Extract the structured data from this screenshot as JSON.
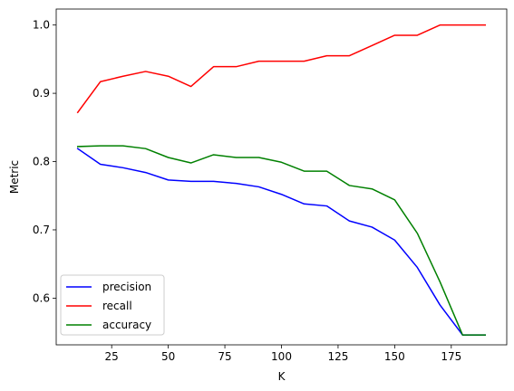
{
  "chart_data": {
    "type": "line",
    "title": "",
    "xlabel": "K",
    "ylabel": "Metric",
    "xlim": [
      0.5,
      199.5
    ],
    "ylim": [
      0.5316,
      1.0234
    ],
    "grid": false,
    "legend_placement": "lower-left",
    "x": [
      10,
      20,
      30,
      40,
      50,
      60,
      70,
      80,
      90,
      100,
      110,
      120,
      130,
      140,
      150,
      160,
      170,
      180,
      190
    ],
    "series": [
      {
        "name": "precision",
        "color": "#0000ff",
        "values": [
          0.819,
          0.796,
          0.791,
          0.784,
          0.773,
          0.771,
          0.771,
          0.768,
          0.763,
          0.752,
          0.738,
          0.735,
          0.713,
          0.704,
          0.685,
          0.645,
          0.59,
          0.546,
          0.546
        ]
      },
      {
        "name": "recall",
        "color": "#ff0000",
        "values": [
          0.872,
          0.917,
          0.925,
          0.932,
          0.925,
          0.91,
          0.939,
          0.939,
          0.947,
          0.947,
          0.947,
          0.955,
          0.955,
          0.97,
          0.985,
          0.985,
          1.0,
          1.0,
          1.0
        ]
      },
      {
        "name": "accuracy",
        "color": "#008000",
        "values": [
          0.822,
          0.823,
          0.823,
          0.819,
          0.806,
          0.798,
          0.81,
          0.806,
          0.806,
          0.799,
          0.786,
          0.786,
          0.765,
          0.76,
          0.744,
          0.695,
          0.624,
          0.546,
          0.546
        ]
      }
    ],
    "xticks": [
      25,
      50,
      75,
      100,
      125,
      150,
      175
    ],
    "xtick_labels": [
      "25",
      "50",
      "75",
      "100",
      "125",
      "150",
      "175"
    ],
    "yticks": [
      0.6,
      0.7,
      0.8,
      0.9,
      1.0
    ],
    "ytick_labels": [
      "0.6",
      "0.7",
      "0.8",
      "0.9",
      "1.0"
    ]
  }
}
